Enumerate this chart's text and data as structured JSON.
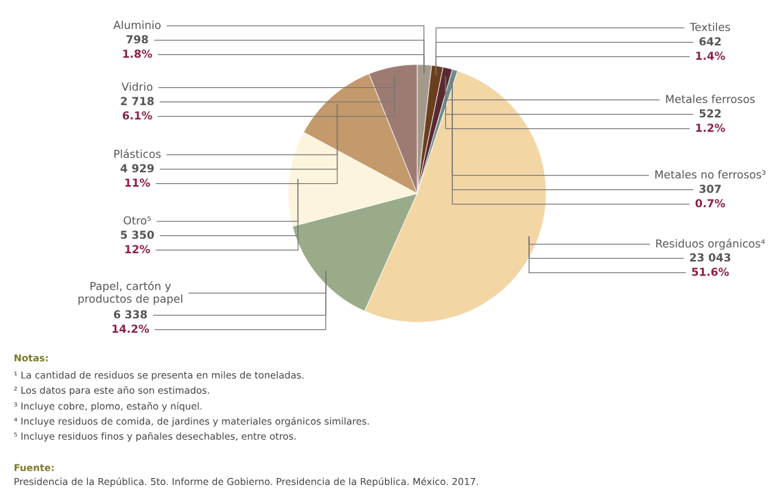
{
  "chart_data": {
    "type": "pie",
    "categories": [
      "Aluminio",
      "Textiles",
      "Metales ferrosos",
      "Metales no ferrosos³",
      "Residuos orgánicos⁴",
      "Papel, cartón y\nproductos de papel",
      "Otro⁵",
      "Plásticos",
      "Vidrio"
    ],
    "values": [
      798,
      642,
      522,
      307,
      23043,
      6338,
      5350,
      4929,
      2718
    ],
    "value_labels": [
      "798\n1.8%",
      "642\n1.4%",
      "522\n1.2%",
      "307\n0.7%",
      "23 043\n51.6%",
      "6 338\n14.2%",
      "5 350\n12%",
      "4 929\n11%",
      "2 718\n6.1%"
    ],
    "colors": [
      "#a39a8c",
      "#6b3e1e",
      "#5a2830",
      "#6f8c8c",
      "#f2d6a4",
      "#9aab8a",
      "#fcf4dc",
      "#c49a6c",
      "#9e7b72"
    ],
    "annotations": [
      "Notas:",
      "¹ La cantidad de residuos se presenta en miles de toneladas.",
      "² Los datos para este año son estimados.",
      "³ Incluye cobre, plomo, estaño y níquel.",
      "⁴ Incluye residuos de comida, de jardines y materiales orgánicos similares.",
      "⁵ Incluye residuos finos y pañales desechables, entre otros.",
      "Fuente:",
      "Presidencia de la República. 5to. Informe de Gobierno. Presidencia de la República. México. 2017."
    ]
  }
}
